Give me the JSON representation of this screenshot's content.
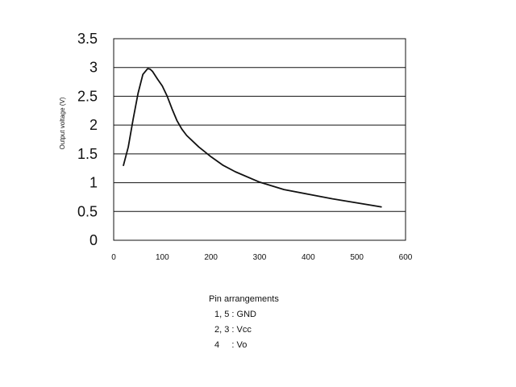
{
  "chart_data": {
    "type": "line",
    "title": "",
    "xlabel": "",
    "ylabel": "Output voltage (V)",
    "xlim": [
      0,
      600
    ],
    "ylim": [
      0,
      3.5
    ],
    "x_ticks": [
      "0",
      "100",
      "200",
      "300",
      "400",
      "500",
      "600"
    ],
    "y_ticks": [
      "0",
      "0.5",
      "1",
      "1.5",
      "2",
      "2.5",
      "3",
      "3.5"
    ],
    "grid": "horizontal",
    "series": [
      {
        "name": "",
        "color": "#111111",
        "x": [
          20,
          30,
          40,
          50,
          60,
          70,
          75,
          80,
          90,
          100,
          110,
          120,
          130,
          140,
          150,
          175,
          200,
          225,
          250,
          300,
          350,
          400,
          450,
          500,
          550
        ],
        "y": [
          1.3,
          1.62,
          2.1,
          2.55,
          2.88,
          2.98,
          2.97,
          2.93,
          2.8,
          2.68,
          2.5,
          2.28,
          2.08,
          1.93,
          1.82,
          1.62,
          1.45,
          1.3,
          1.19,
          1.01,
          0.88,
          0.8,
          0.72,
          0.65,
          0.58
        ]
      }
    ]
  },
  "notes": {
    "heading": "Pin arrangements",
    "rows": [
      "1, 5 : GND",
      "2, 3 : Vcc",
      "4     : Vo"
    ]
  }
}
